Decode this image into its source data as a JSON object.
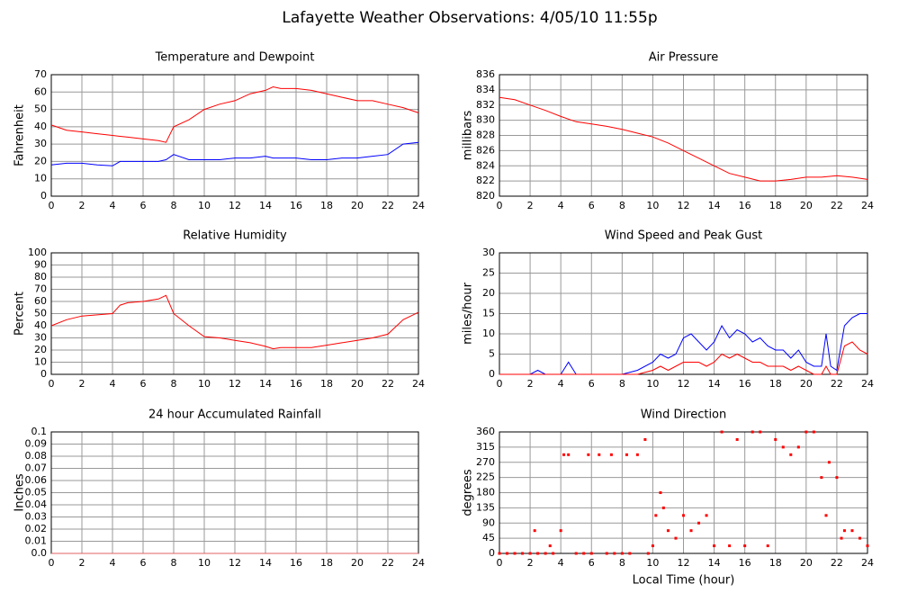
{
  "title": "Lafayette Weather Observations: 4/05/10 11:55p",
  "chart_data": [
    {
      "type": "line",
      "title": "Temperature and Dewpoint",
      "ylabel": "Fahrenheit",
      "x": [
        0,
        1,
        2,
        3,
        4,
        4.5,
        5,
        6,
        7,
        7.5,
        8,
        9,
        10,
        11,
        12,
        13,
        14,
        14.5,
        15,
        16,
        17,
        18,
        19,
        20,
        21,
        22,
        23,
        24
      ],
      "series": [
        {
          "name": "Temperature",
          "color": "#ff0000",
          "values": [
            41,
            38,
            37,
            36,
            35,
            34.5,
            34,
            33,
            32,
            31,
            40,
            44,
            50,
            53,
            55,
            59,
            61,
            63,
            62,
            62,
            61,
            59,
            57,
            55,
            55,
            53,
            51,
            48
          ]
        },
        {
          "name": "Dewpoint",
          "color": "#0000ff",
          "values": [
            18,
            19,
            19,
            18,
            17.5,
            20,
            20,
            20,
            20,
            21,
            24,
            21,
            21,
            21,
            22,
            22,
            23,
            22,
            22,
            22,
            21,
            21,
            22,
            22,
            23,
            24,
            30,
            31
          ]
        }
      ],
      "xlim": [
        0,
        24
      ],
      "xticks": [
        0,
        2,
        4,
        6,
        8,
        10,
        12,
        14,
        16,
        18,
        20,
        22,
        24
      ],
      "ylim": [
        0,
        70
      ],
      "yticks": [
        0,
        10,
        20,
        30,
        40,
        50,
        60,
        70
      ],
      "grid": true
    },
    {
      "type": "line",
      "title": "Air Pressure",
      "ylabel": "millibars",
      "x": [
        0,
        1,
        2,
        3,
        4,
        5,
        6,
        7,
        8,
        9,
        10,
        11,
        12,
        13,
        14,
        15,
        16,
        17,
        18,
        19,
        20,
        21,
        22,
        23,
        24
      ],
      "series": [
        {
          "name": "Pressure",
          "color": "#ff0000",
          "values": [
            833,
            832.7,
            832,
            831.3,
            830.5,
            829.8,
            829.5,
            829.2,
            828.8,
            828.3,
            827.8,
            827,
            826,
            825,
            824,
            823,
            822.5,
            822,
            822,
            822.2,
            822.5,
            822.5,
            822.7,
            822.5,
            822.2
          ]
        }
      ],
      "xlim": [
        0,
        24
      ],
      "xticks": [
        0,
        2,
        4,
        6,
        8,
        10,
        12,
        14,
        16,
        18,
        20,
        22,
        24
      ],
      "ylim": [
        820,
        836
      ],
      "yticks": [
        820,
        822,
        824,
        826,
        828,
        830,
        832,
        834,
        836
      ],
      "grid": true
    },
    {
      "type": "line",
      "title": "Relative Humidity",
      "ylabel": "Percent",
      "x": [
        0,
        1,
        2,
        3,
        4,
        4.5,
        5,
        6,
        7,
        7.5,
        8,
        9,
        10,
        11,
        12,
        13,
        14,
        14.5,
        15,
        16,
        17,
        18,
        19,
        20,
        21,
        22,
        23,
        24
      ],
      "series": [
        {
          "name": "Humidity",
          "color": "#ff0000",
          "values": [
            40,
            45,
            48,
            49,
            50,
            57,
            59,
            60,
            62,
            65,
            50,
            40,
            31,
            30,
            28,
            26,
            23,
            21,
            22,
            22,
            22,
            24,
            26,
            28,
            30,
            33,
            45,
            51
          ]
        }
      ],
      "xlim": [
        0,
        24
      ],
      "xticks": [
        0,
        2,
        4,
        6,
        8,
        10,
        12,
        14,
        16,
        18,
        20,
        22,
        24
      ],
      "ylim": [
        0,
        100
      ],
      "yticks": [
        0,
        10,
        20,
        30,
        40,
        50,
        60,
        70,
        80,
        90,
        100
      ],
      "grid": true
    },
    {
      "type": "line",
      "title": "Wind Speed and Peak Gust",
      "ylabel": "miles/hour",
      "x": [
        0,
        1,
        2,
        2.5,
        3,
        4,
        4.5,
        5,
        6,
        7,
        8,
        9,
        10,
        10.5,
        11,
        11.5,
        12,
        12.5,
        13,
        13.5,
        14,
        14.5,
        15,
        15.5,
        16,
        16.5,
        17,
        17.5,
        18,
        18.5,
        19,
        19.5,
        20,
        20.5,
        21,
        21.3,
        21.6,
        22,
        22.5,
        23,
        23.5,
        24
      ],
      "series": [
        {
          "name": "Peak Gust",
          "color": "#0000ff",
          "values": [
            0,
            0,
            0,
            1,
            0,
            0,
            3,
            0,
            0,
            0,
            0,
            1,
            3,
            5,
            4,
            5,
            9,
            10,
            8,
            6,
            8,
            12,
            9,
            11,
            10,
            8,
            9,
            7,
            6,
            6,
            4,
            6,
            3,
            2,
            2,
            10,
            2,
            1,
            12,
            14,
            15,
            15
          ]
        },
        {
          "name": "Wind Speed",
          "color": "#ff0000",
          "values": [
            0,
            0,
            0,
            0,
            0,
            0,
            0,
            0,
            0,
            0,
            0,
            0,
            1,
            2,
            1,
            2,
            3,
            3,
            3,
            2,
            3,
            5,
            4,
            5,
            4,
            3,
            3,
            2,
            2,
            2,
            1,
            2,
            1,
            0,
            0,
            2,
            0,
            0,
            7,
            8,
            6,
            5
          ]
        }
      ],
      "xlim": [
        0,
        24
      ],
      "xticks": [
        0,
        2,
        4,
        6,
        8,
        10,
        12,
        14,
        16,
        18,
        20,
        22,
        24
      ],
      "ylim": [
        0,
        30
      ],
      "yticks": [
        0,
        5,
        10,
        15,
        20,
        25,
        30
      ],
      "grid": true
    },
    {
      "type": "line",
      "title": "24 hour Accumulated Rainfall",
      "ylabel": "Inches",
      "x": [
        0,
        24
      ],
      "series": [
        {
          "name": "Rainfall",
          "color": "#e06060",
          "values": [
            0,
            0
          ]
        }
      ],
      "xlim": [
        0,
        24
      ],
      "xticks": [
        0,
        2,
        4,
        6,
        8,
        10,
        12,
        14,
        16,
        18,
        20,
        22,
        24
      ],
      "ylim": [
        0,
        0.1
      ],
      "yticks": [
        {
          "value": 0,
          "label": "0.0"
        },
        0.01,
        0.02,
        0.03,
        0.04,
        0.05,
        0.06,
        0.07,
        0.08,
        0.09,
        0.1
      ],
      "grid": true
    },
    {
      "type": "scatter",
      "title": "Wind Direction",
      "ylabel": "degrees",
      "xlabel": "Local Time (hour)",
      "x": [
        0,
        0.5,
        1,
        1.5,
        2,
        2.3,
        2.5,
        3,
        3.3,
        3.5,
        4,
        4.2,
        4.5,
        5,
        5.5,
        5.8,
        6,
        6.5,
        7,
        7.3,
        7.5,
        8,
        8.3,
        8.5,
        9,
        9.5,
        9.7,
        10,
        10.2,
        10.5,
        10.7,
        11,
        11.5,
        12,
        12.5,
        13,
        13.5,
        14,
        14.5,
        15,
        15.5,
        16,
        16.5,
        17,
        17.5,
        18,
        18.5,
        19,
        19.5,
        20,
        20.5,
        21,
        21.3,
        21.5,
        22,
        22.3,
        22.5,
        23,
        23.5,
        24
      ],
      "series": [
        {
          "name": "Direction",
          "color": "#ff0000",
          "values": [
            0,
            0,
            0,
            0,
            0,
            67.5,
            0,
            0,
            22.5,
            0,
            67.5,
            292.5,
            292.5,
            0,
            0,
            292.5,
            0,
            292.5,
            0,
            292.5,
            0,
            0,
            292.5,
            0,
            292.5,
            337.5,
            0,
            22.5,
            112.5,
            180,
            135,
            67.5,
            45,
            112.5,
            67.5,
            90,
            112.5,
            22.5,
            360,
            22.5,
            337.5,
            22.5,
            360,
            360,
            22.5,
            337.5,
            315,
            292.5,
            315,
            360,
            360,
            225,
            112.5,
            270,
            225,
            45,
            67.5,
            67.5,
            45,
            22.5
          ]
        }
      ],
      "xlim": [
        0,
        24
      ],
      "xticks": [
        0,
        2,
        4,
        6,
        8,
        10,
        12,
        14,
        16,
        18,
        20,
        22,
        24
      ],
      "ylim": [
        0,
        360
      ],
      "yticks": [
        0,
        45,
        90,
        135,
        180,
        225,
        270,
        315,
        360
      ],
      "grid": true
    }
  ]
}
